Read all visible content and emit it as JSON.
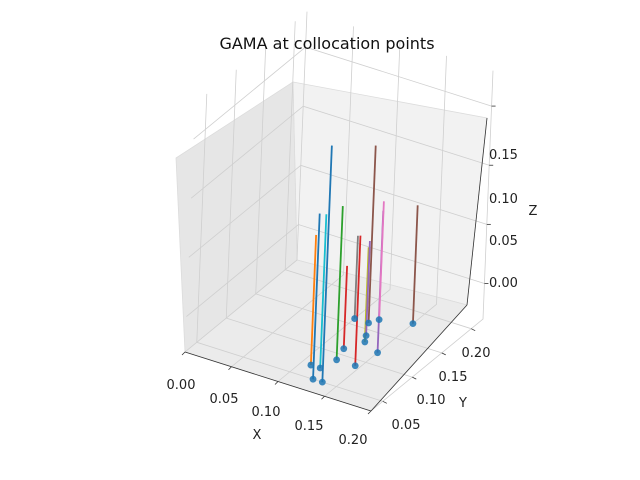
{
  "chart_data": {
    "type": "scatter",
    "title": "GAMA at collocation points",
    "xlabel": "X",
    "ylabel": "Y",
    "zlabel": "Z",
    "xlim": [
      0.0,
      0.2
    ],
    "ylim": [
      0.03,
      0.22
    ],
    "zlim": [
      -0.03,
      0.18
    ],
    "xticks": [
      "0.00",
      "0.05",
      "0.10",
      "0.15",
      "0.20"
    ],
    "yticks": [
      "0.05",
      "0.10",
      "0.15",
      "0.20"
    ],
    "zticks": [
      "0.00",
      "0.05",
      "0.10",
      "0.15"
    ],
    "marker_color": "#1f77b4",
    "series": [
      {
        "color": "#1f77b4",
        "x": 0.135,
        "y": 0.05,
        "z": 0.17
      },
      {
        "color": "#1f77b4",
        "x": 0.125,
        "y": 0.05,
        "z": 0.11
      },
      {
        "color": "#17becf",
        "x": 0.12,
        "y": 0.07,
        "z": 0.1
      },
      {
        "color": "#ff7f0e",
        "x": 0.11,
        "y": 0.07,
        "z": 0.08
      },
      {
        "color": "#2ca02c",
        "x": 0.125,
        "y": 0.09,
        "z": 0.1
      },
      {
        "color": "#d62728",
        "x": 0.145,
        "y": 0.09,
        "z": 0.08
      },
      {
        "color": "#9467bd",
        "x": 0.15,
        "y": 0.12,
        "z": 0.09
      },
      {
        "color": "#8c564b",
        "x": 0.115,
        "y": 0.16,
        "z": 0.12
      },
      {
        "color": "#e377c2",
        "x": 0.12,
        "y": 0.17,
        "z": 0.07
      },
      {
        "color": "#bcbd22",
        "x": 0.13,
        "y": 0.13,
        "z": 0.05
      },
      {
        "color": "#7f7f7f",
        "x": 0.1,
        "y": 0.16,
        "z": 0.04
      },
      {
        "color": "#8c564b",
        "x": 0.15,
        "y": 0.18,
        "z": 0.07
      },
      {
        "color": "#d62728",
        "x": 0.12,
        "y": 0.11,
        "z": 0.04
      },
      {
        "color": "#9467bd",
        "x": 0.125,
        "y": 0.14,
        "z": 0.05
      }
    ]
  }
}
